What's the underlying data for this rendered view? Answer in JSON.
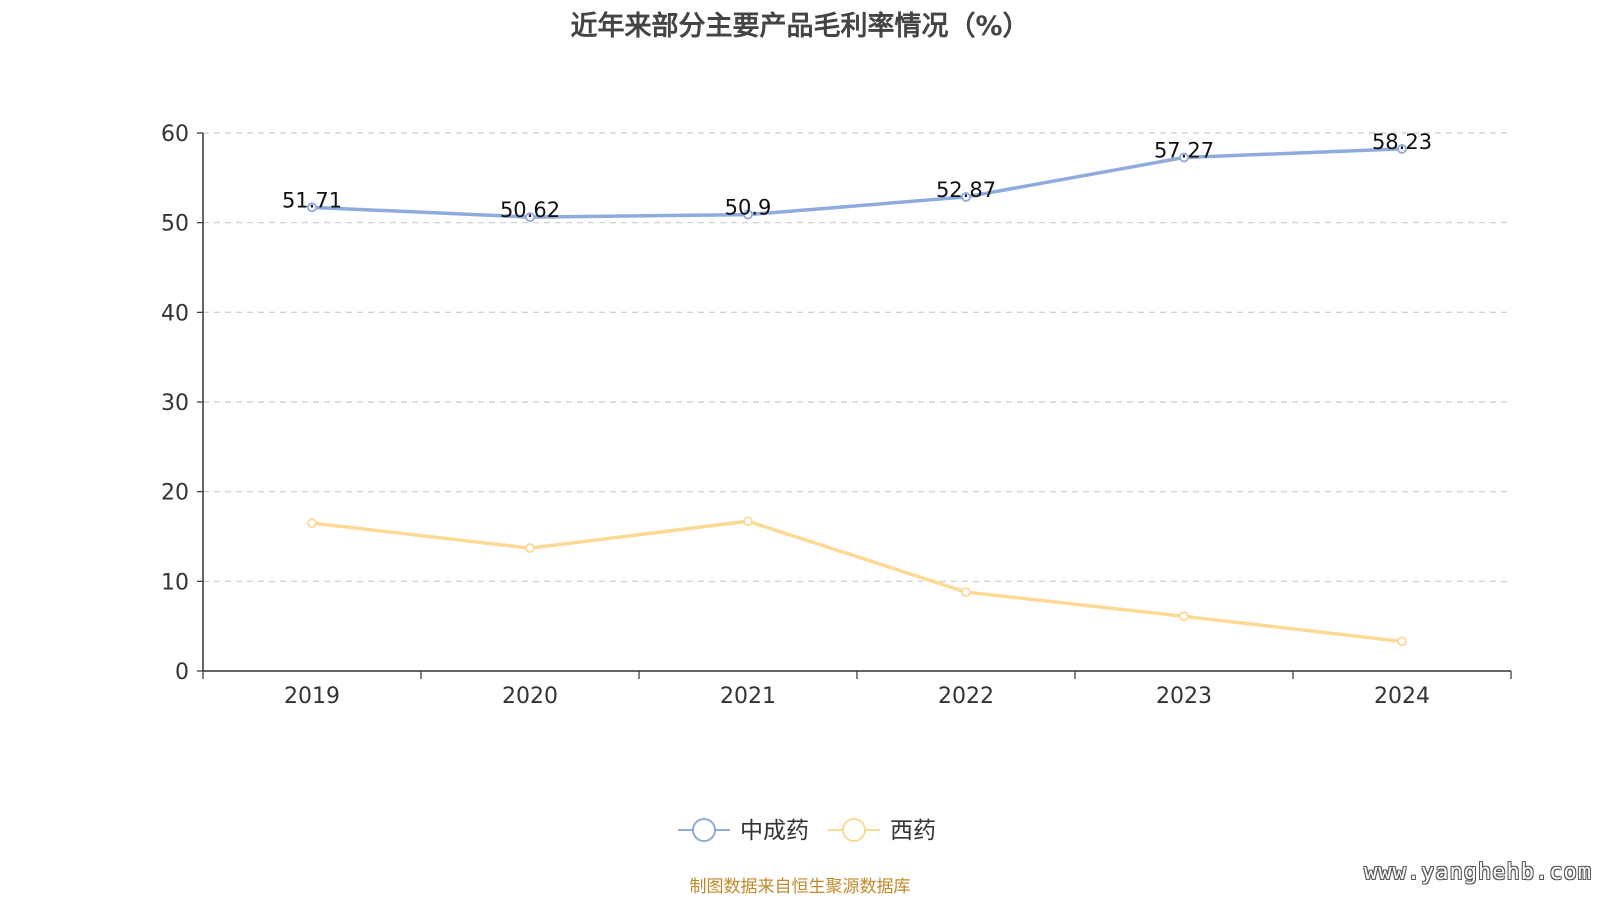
{
  "chart_data": {
    "type": "line",
    "title": "近年来部分主要产品毛利率情况（%）",
    "xlabel": "",
    "ylabel": "",
    "categories": [
      "2019",
      "2020",
      "2021",
      "2022",
      "2023",
      "2024"
    ],
    "ylim": [
      0,
      60
    ],
    "yticks": [
      0,
      10,
      20,
      30,
      40,
      50,
      60
    ],
    "grid": true,
    "legend_position": "bottom",
    "series": [
      {
        "name": "中成药",
        "color": "#8faadc",
        "values": [
          51.71,
          50.62,
          50.9,
          52.87,
          57.27,
          58.23
        ],
        "show_labels": true
      },
      {
        "name": "西药",
        "color": "#fdd996",
        "values": [
          16.5,
          13.7,
          16.7,
          8.8,
          6.1,
          3.3
        ],
        "show_labels": false
      }
    ]
  },
  "footer": {
    "source": "制图数据来自恒生聚源数据库",
    "watermark": "www.yanghehb.com"
  }
}
